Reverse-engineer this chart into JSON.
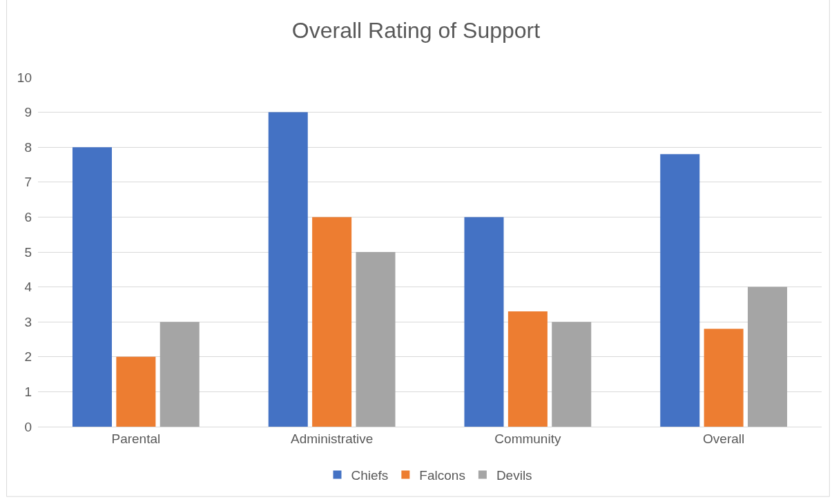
{
  "chart_data": {
    "type": "bar",
    "title": "Overall Rating of Support",
    "categories": [
      "Parental",
      "Administrative",
      "Community",
      "Overall"
    ],
    "series": [
      {
        "name": "Chiefs",
        "color": "#4472c4",
        "values": [
          8,
          9,
          6,
          7.8
        ]
      },
      {
        "name": "Falcons",
        "color": "#ed7d31",
        "values": [
          2,
          6,
          3.3,
          2.8
        ]
      },
      {
        "name": "Devils",
        "color": "#a5a5a5",
        "values": [
          3,
          5,
          3,
          4
        ]
      }
    ],
    "ylim": [
      0,
      10
    ],
    "yticks": [
      0,
      1,
      2,
      3,
      4,
      5,
      6,
      7,
      8,
      9,
      10
    ],
    "grid": "y",
    "legend": "bottom"
  }
}
